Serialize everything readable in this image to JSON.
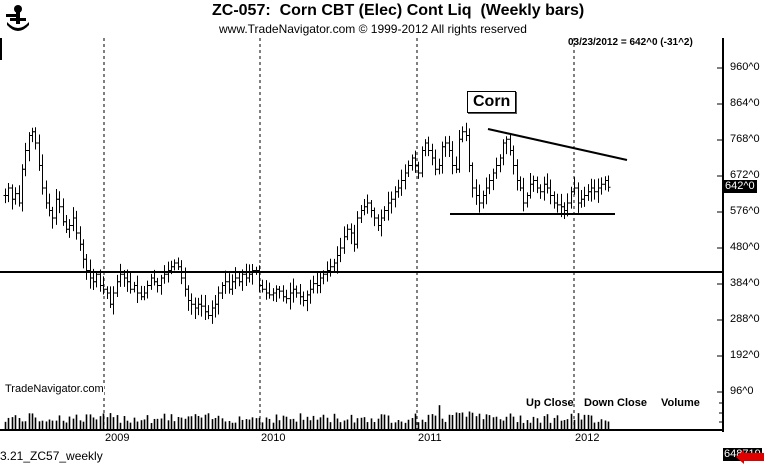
{
  "header": {
    "title": "ZC-057:  Corn CBT (Elec) Cont Liq  (Weekly bars)",
    "subtitle": "www.TradeNavigator.com © 1999-2012 All rights reserved",
    "last_info": "03/23/2012 = 642^0 (-31^2)"
  },
  "logo": {
    "icon": "sextant-icon"
  },
  "annotation": {
    "label": "Corn"
  },
  "price_badge": "642^0",
  "volume_badge": "648719",
  "watermark": "TradeNavigator.com",
  "footer": "3.21_ZC57_weekly",
  "legend": {
    "up": "Up Close",
    "down": "Down Close",
    "volume": "Volume"
  },
  "colors": {
    "bars": "#000000",
    "background": "#ffffff",
    "arrow": "#e00000"
  },
  "chart_data": {
    "type": "ohlc-bar",
    "title": "ZC-057: Corn CBT (Elec) Cont Liq (Weekly bars)",
    "xlabel": "",
    "ylabel": "",
    "y_ticks": [
      "960^0",
      "864^0",
      "768^0",
      "672^0",
      "576^0",
      "480^0",
      "384^0",
      "288^0",
      "192^0",
      "96^0"
    ],
    "y_tick_values": [
      960,
      864,
      768,
      672,
      576,
      480,
      384,
      288,
      192,
      96
    ],
    "ylim": [
      96,
      960
    ],
    "x_ticks": [
      "2009",
      "2010",
      "2011",
      "2012"
    ],
    "last_value": 642,
    "last_date": "03/23/2012",
    "change": "-31^2",
    "last_volume": 648719,
    "grid": "vertical dashed lines at year starts",
    "annotations": {
      "horizontal_support": 416,
      "triangle_bottom": 568,
      "triangle_top_start": {
        "date": "2011-06",
        "price": 792
      },
      "triangle_top_end": {
        "date": "2012-05",
        "price": 710
      }
    },
    "closes": [
      620,
      640,
      610,
      625,
      600,
      690,
      740,
      780,
      790,
      760,
      700,
      640,
      600,
      580,
      560,
      610,
      590,
      550,
      530,
      540,
      560,
      520,
      490,
      450,
      420,
      400,
      390,
      410,
      380,
      370,
      360,
      330,
      360,
      390,
      410,
      400,
      390,
      370,
      380,
      360,
      350,
      360,
      380,
      400,
      390,
      380,
      400,
      410,
      420,
      430,
      440,
      430,
      400,
      370,
      340,
      330,
      320,
      330,
      325,
      310,
      300,
      320,
      330,
      360,
      380,
      390,
      370,
      390,
      400,
      390,
      410,
      400,
      410,
      420,
      420,
      380,
      370,
      360,
      355,
      360,
      370,
      365,
      350,
      345,
      360,
      370,
      360,
      350,
      340,
      355,
      370,
      385,
      380,
      400,
      410,
      420,
      430,
      440,
      460,
      480,
      510,
      530,
      520,
      490,
      560,
      580,
      590,
      600,
      580,
      560,
      540,
      560,
      580,
      600,
      610,
      630,
      640,
      660,
      680,
      700,
      720,
      700,
      680,
      740,
      760,
      740,
      720,
      690,
      700,
      750,
      760,
      740,
      700,
      690,
      770,
      790,
      780,
      700,
      640,
      620,
      600,
      620,
      640,
      660,
      680,
      700,
      720,
      760,
      770,
      740,
      700,
      660,
      640,
      600,
      620,
      650,
      660,
      640,
      630,
      650,
      640,
      620,
      600,
      595,
      590,
      580,
      600,
      630,
      640,
      600,
      610,
      620,
      630,
      640,
      630,
      640,
      650,
      660,
      642
    ],
    "volume_relative": "weekly volume histogram, latest 648719"
  }
}
